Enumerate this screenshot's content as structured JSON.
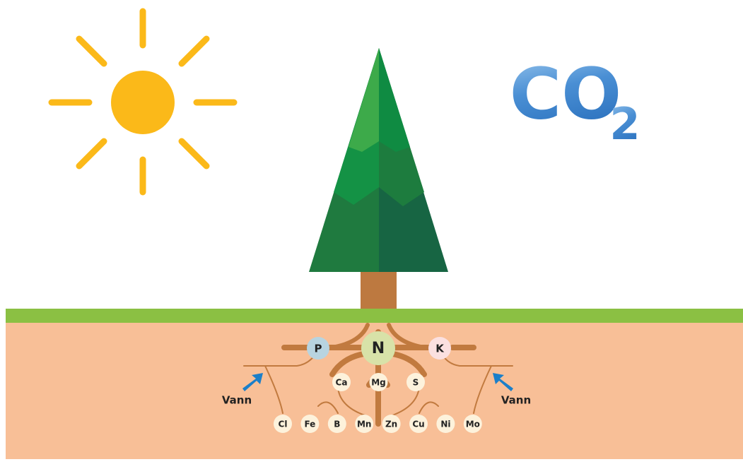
{
  "gas": {
    "formula": "CO",
    "subscript": "2"
  },
  "nutrients": {
    "primary": [
      "P",
      "N",
      "K"
    ],
    "secondary": [
      "Ca",
      "Mg",
      "S"
    ],
    "micro": [
      "Cl",
      "Fe",
      "B",
      "Mn",
      "Zn",
      "Cu",
      "Ni",
      "Mo"
    ]
  },
  "water": [
    "Vann",
    "Vann"
  ]
}
